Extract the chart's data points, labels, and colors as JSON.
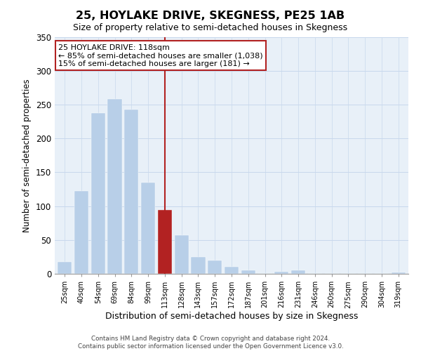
{
  "title": "25, HOYLAKE DRIVE, SKEGNESS, PE25 1AB",
  "subtitle": "Size of property relative to semi-detached houses in Skegness",
  "xlabel": "Distribution of semi-detached houses by size in Skegness",
  "ylabel": "Number of semi-detached properties",
  "bar_labels": [
    "25sqm",
    "40sqm",
    "54sqm",
    "69sqm",
    "84sqm",
    "99sqm",
    "113sqm",
    "128sqm",
    "143sqm",
    "157sqm",
    "172sqm",
    "187sqm",
    "201sqm",
    "216sqm",
    "231sqm",
    "246sqm",
    "260sqm",
    "275sqm",
    "290sqm",
    "304sqm",
    "319sqm"
  ],
  "bar_values": [
    18,
    122,
    238,
    258,
    243,
    135,
    94,
    57,
    25,
    20,
    10,
    5,
    0,
    3,
    5,
    0,
    0,
    0,
    0,
    0,
    2
  ],
  "bar_color": "#b8cfe8",
  "highlight_bar_index": 6,
  "highlight_bar_color": "#b22222",
  "vline_color": "#b22222",
  "annotation_title": "25 HOYLAKE DRIVE: 118sqm",
  "annotation_line1": "← 85% of semi-detached houses are smaller (1,038)",
  "annotation_line2": "15% of semi-detached houses are larger (181) →",
  "annotation_box_color": "#ffffff",
  "annotation_box_edge": "#b22222",
  "ylim": [
    0,
    350
  ],
  "yticks": [
    0,
    50,
    100,
    150,
    200,
    250,
    300,
    350
  ],
  "footnote1": "Contains HM Land Registry data © Crown copyright and database right 2024.",
  "footnote2": "Contains public sector information licensed under the Open Government Licence v3.0."
}
